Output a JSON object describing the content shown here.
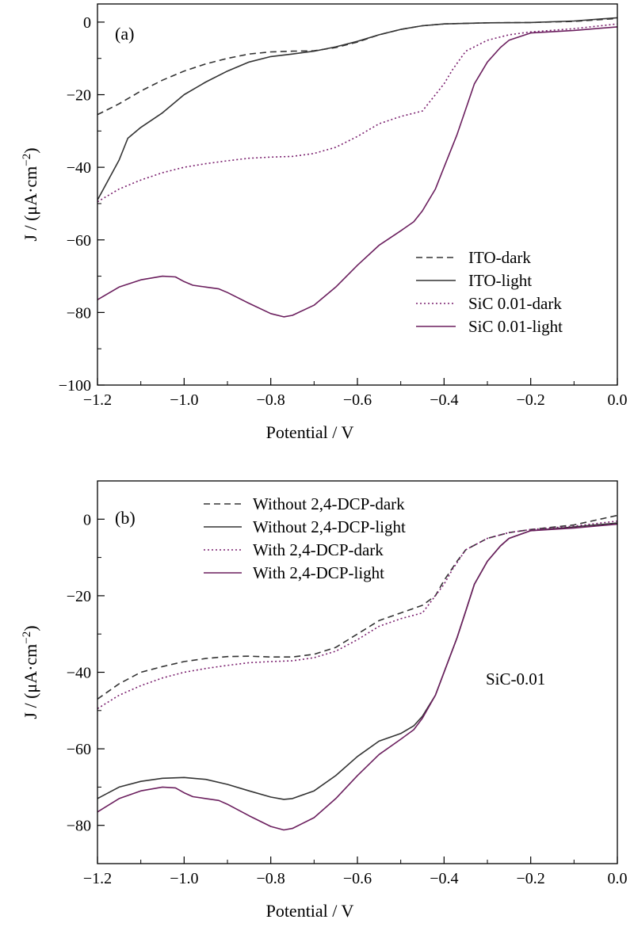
{
  "chart_data": [
    {
      "type": "line",
      "panel": "(a)",
      "xlabel": "Potential / V",
      "ylabel_main": "J / (μA·cm",
      "ylabel_sup": "−2",
      "ylabel_close": ")",
      "xlim": [
        -1.2,
        0.0
      ],
      "ylim": [
        -100,
        5
      ],
      "xticks": [
        -1.2,
        -1.0,
        -0.8,
        -0.6,
        -0.4,
        -0.2,
        0.0
      ],
      "xtick_labels": [
        "−1.2",
        "−1.0",
        "−0.8",
        "−0.6",
        "−0.4",
        "−0.2",
        "0.0"
      ],
      "yticks": [
        0,
        -20,
        -40,
        -60,
        -80,
        -100
      ],
      "ytick_labels": [
        "0",
        "−20",
        "−40",
        "−60",
        "−80",
        "−100"
      ],
      "legend_position": "right-middle",
      "series": [
        {
          "name": "ITO-dark",
          "color": "#333333",
          "dash": "dashed",
          "points": [
            [
              -1.2,
              -25.5
            ],
            [
              -1.15,
              -22.5
            ],
            [
              -1.1,
              -19
            ],
            [
              -1.05,
              -16
            ],
            [
              -1.0,
              -13.5
            ],
            [
              -0.95,
              -11.5
            ],
            [
              -0.9,
              -10
            ],
            [
              -0.85,
              -8.8
            ],
            [
              -0.8,
              -8.2
            ],
            [
              -0.75,
              -8.0
            ],
            [
              -0.7,
              -7.9
            ],
            [
              -0.65,
              -7.0
            ],
            [
              -0.6,
              -5.5
            ],
            [
              -0.55,
              -3.5
            ],
            [
              -0.5,
              -2.0
            ],
            [
              -0.45,
              -1.0
            ],
            [
              -0.4,
              -0.5
            ],
            [
              -0.3,
              -0.2
            ],
            [
              -0.2,
              -0.1
            ],
            [
              -0.1,
              0.2
            ],
            [
              0.0,
              1.0
            ]
          ]
        },
        {
          "name": "ITO-light",
          "color": "#333333",
          "dash": "solid",
          "points": [
            [
              -1.2,
              -49
            ],
            [
              -1.15,
              -38
            ],
            [
              -1.13,
              -32
            ],
            [
              -1.1,
              -29
            ],
            [
              -1.05,
              -25
            ],
            [
              -1.0,
              -20
            ],
            [
              -0.95,
              -16.5
            ],
            [
              -0.9,
              -13.5
            ],
            [
              -0.85,
              -11
            ],
            [
              -0.8,
              -9.5
            ],
            [
              -0.75,
              -8.8
            ],
            [
              -0.7,
              -8.0
            ],
            [
              -0.65,
              -6.8
            ],
            [
              -0.6,
              -5.3
            ],
            [
              -0.55,
              -3.5
            ],
            [
              -0.5,
              -2.0
            ],
            [
              -0.45,
              -1.0
            ],
            [
              -0.4,
              -0.5
            ],
            [
              -0.3,
              -0.2
            ],
            [
              -0.2,
              -0.1
            ],
            [
              -0.1,
              0.3
            ],
            [
              0.0,
              1.2
            ]
          ]
        },
        {
          "name": "SiC 0.01-dark",
          "color": "#7a1f6e",
          "dash": "dotted",
          "points": [
            [
              -1.2,
              -49.5
            ],
            [
              -1.15,
              -46
            ],
            [
              -1.1,
              -43.5
            ],
            [
              -1.05,
              -41.5
            ],
            [
              -1.0,
              -40
            ],
            [
              -0.95,
              -39
            ],
            [
              -0.9,
              -38.2
            ],
            [
              -0.85,
              -37.5
            ],
            [
              -0.8,
              -37.2
            ],
            [
              -0.75,
              -37.0
            ],
            [
              -0.7,
              -36.2
            ],
            [
              -0.65,
              -34.5
            ],
            [
              -0.6,
              -31.5
            ],
            [
              -0.55,
              -28
            ],
            [
              -0.5,
              -26
            ],
            [
              -0.45,
              -24.5
            ],
            [
              -0.4,
              -17
            ],
            [
              -0.38,
              -13
            ],
            [
              -0.35,
              -8
            ],
            [
              -0.3,
              -5
            ],
            [
              -0.25,
              -3.5
            ],
            [
              -0.2,
              -2.7
            ],
            [
              -0.1,
              -1.8
            ],
            [
              0.0,
              -0.5
            ]
          ]
        },
        {
          "name": "SiC 0.01-light",
          "color": "#6b1f5e",
          "dash": "solid",
          "points": [
            [
              -1.2,
              -76.5
            ],
            [
              -1.15,
              -73
            ],
            [
              -1.1,
              -71
            ],
            [
              -1.05,
              -70
            ],
            [
              -1.02,
              -70.2
            ],
            [
              -1.0,
              -71.5
            ],
            [
              -0.98,
              -72.5
            ],
            [
              -0.95,
              -73
            ],
            [
              -0.92,
              -73.5
            ],
            [
              -0.9,
              -74.5
            ],
            [
              -0.85,
              -77.5
            ],
            [
              -0.8,
              -80.3
            ],
            [
              -0.77,
              -81.2
            ],
            [
              -0.75,
              -80.8
            ],
            [
              -0.7,
              -78
            ],
            [
              -0.65,
              -73
            ],
            [
              -0.6,
              -67
            ],
            [
              -0.55,
              -61.5
            ],
            [
              -0.5,
              -57.5
            ],
            [
              -0.47,
              -55
            ],
            [
              -0.45,
              -52
            ],
            [
              -0.42,
              -46
            ],
            [
              -0.4,
              -40
            ],
            [
              -0.37,
              -31
            ],
            [
              -0.35,
              -24
            ],
            [
              -0.33,
              -17
            ],
            [
              -0.3,
              -11
            ],
            [
              -0.27,
              -7
            ],
            [
              -0.25,
              -5
            ],
            [
              -0.2,
              -3
            ],
            [
              -0.1,
              -2.3
            ],
            [
              0.0,
              -1.3
            ]
          ]
        }
      ]
    },
    {
      "type": "line",
      "panel": "(b)",
      "annotation": "SiC-0.01",
      "xlabel": "Potential / V",
      "ylabel_main": "J / (μA·cm",
      "ylabel_sup": "−2",
      "ylabel_close": ")",
      "xlim": [
        -1.2,
        0.0
      ],
      "ylim": [
        -90,
        10
      ],
      "xticks": [
        -1.2,
        -1.0,
        -0.8,
        -0.6,
        -0.4,
        -0.2,
        0.0
      ],
      "xtick_labels": [
        "−1.2",
        "−1.0",
        "−0.8",
        "−0.6",
        "−0.4",
        "−0.2",
        "0.0"
      ],
      "yticks": [
        0,
        -20,
        -40,
        -60,
        -80
      ],
      "ytick_labels": [
        "0",
        "−20",
        "−40",
        "−60",
        "−80"
      ],
      "legend_position": "top-center",
      "series": [
        {
          "name": "Without 2,4-DCP-dark",
          "color": "#333333",
          "dash": "dashed",
          "points": [
            [
              -1.2,
              -47
            ],
            [
              -1.15,
              -43
            ],
            [
              -1.1,
              -40
            ],
            [
              -1.05,
              -38.5
            ],
            [
              -1.0,
              -37.2
            ],
            [
              -0.95,
              -36.4
            ],
            [
              -0.9,
              -35.9
            ],
            [
              -0.85,
              -35.8
            ],
            [
              -0.8,
              -36.0
            ],
            [
              -0.75,
              -36.0
            ],
            [
              -0.7,
              -35.3
            ],
            [
              -0.65,
              -33.5
            ],
            [
              -0.6,
              -30
            ],
            [
              -0.55,
              -26.5
            ],
            [
              -0.5,
              -24.5
            ],
            [
              -0.45,
              -22.5
            ],
            [
              -0.42,
              -20
            ],
            [
              -0.4,
              -16
            ],
            [
              -0.37,
              -11
            ],
            [
              -0.35,
              -8
            ],
            [
              -0.3,
              -5
            ],
            [
              -0.25,
              -3.5
            ],
            [
              -0.2,
              -2.7
            ],
            [
              -0.1,
              -1.5
            ],
            [
              0.0,
              1.0
            ]
          ]
        },
        {
          "name": "Without 2,4-DCP-light",
          "color": "#333333",
          "dash": "solid",
          "points": [
            [
              -1.2,
              -73
            ],
            [
              -1.15,
              -70
            ],
            [
              -1.1,
              -68.5
            ],
            [
              -1.05,
              -67.7
            ],
            [
              -1.0,
              -67.5
            ],
            [
              -0.95,
              -68
            ],
            [
              -0.9,
              -69.3
            ],
            [
              -0.85,
              -71
            ],
            [
              -0.8,
              -72.6
            ],
            [
              -0.77,
              -73.2
            ],
            [
              -0.75,
              -73
            ],
            [
              -0.7,
              -71
            ],
            [
              -0.65,
              -67
            ],
            [
              -0.6,
              -62
            ],
            [
              -0.55,
              -58
            ],
            [
              -0.5,
              -56
            ],
            [
              -0.47,
              -54
            ],
            [
              -0.45,
              -51.5
            ],
            [
              -0.42,
              -46
            ],
            [
              -0.4,
              -40
            ],
            [
              -0.37,
              -31
            ],
            [
              -0.35,
              -24
            ],
            [
              -0.33,
              -17
            ],
            [
              -0.3,
              -11
            ],
            [
              -0.27,
              -7
            ],
            [
              -0.25,
              -5
            ],
            [
              -0.2,
              -3
            ],
            [
              -0.1,
              -2
            ],
            [
              0.0,
              -1.0
            ]
          ]
        },
        {
          "name": "With 2,4-DCP-dark",
          "color": "#7a1f6e",
          "dash": "dotted",
          "points": [
            [
              -1.2,
              -49.5
            ],
            [
              -1.15,
              -46
            ],
            [
              -1.1,
              -43.5
            ],
            [
              -1.05,
              -41.5
            ],
            [
              -1.0,
              -40
            ],
            [
              -0.95,
              -39
            ],
            [
              -0.9,
              -38.2
            ],
            [
              -0.85,
              -37.5
            ],
            [
              -0.8,
              -37.2
            ],
            [
              -0.75,
              -37.0
            ],
            [
              -0.7,
              -36.2
            ],
            [
              -0.65,
              -34.5
            ],
            [
              -0.6,
              -31.5
            ],
            [
              -0.55,
              -28
            ],
            [
              -0.5,
              -26
            ],
            [
              -0.45,
              -24.5
            ],
            [
              -0.4,
              -17
            ],
            [
              -0.38,
              -13
            ],
            [
              -0.35,
              -8
            ],
            [
              -0.3,
              -5
            ],
            [
              -0.25,
              -3.5
            ],
            [
              -0.2,
              -2.7
            ],
            [
              -0.1,
              -1.8
            ],
            [
              0.0,
              -0.5
            ]
          ]
        },
        {
          "name": "With 2,4-DCP-light",
          "color": "#6b1f5e",
          "dash": "solid",
          "points": [
            [
              -1.2,
              -76.5
            ],
            [
              -1.15,
              -73
            ],
            [
              -1.1,
              -71
            ],
            [
              -1.05,
              -70
            ],
            [
              -1.02,
              -70.2
            ],
            [
              -1.0,
              -71.5
            ],
            [
              -0.98,
              -72.5
            ],
            [
              -0.95,
              -73
            ],
            [
              -0.92,
              -73.5
            ],
            [
              -0.9,
              -74.5
            ],
            [
              -0.85,
              -77.5
            ],
            [
              -0.8,
              -80.3
            ],
            [
              -0.77,
              -81.2
            ],
            [
              -0.75,
              -80.8
            ],
            [
              -0.7,
              -78
            ],
            [
              -0.65,
              -73
            ],
            [
              -0.6,
              -67
            ],
            [
              -0.55,
              -61.5
            ],
            [
              -0.5,
              -57.5
            ],
            [
              -0.47,
              -55
            ],
            [
              -0.45,
              -52
            ],
            [
              -0.42,
              -46
            ],
            [
              -0.4,
              -40
            ],
            [
              -0.37,
              -31
            ],
            [
              -0.35,
              -24
            ],
            [
              -0.33,
              -17
            ],
            [
              -0.3,
              -11
            ],
            [
              -0.27,
              -7
            ],
            [
              -0.25,
              -5
            ],
            [
              -0.2,
              -3
            ],
            [
              -0.1,
              -2.3
            ],
            [
              0.0,
              -1.3
            ]
          ]
        }
      ]
    }
  ]
}
